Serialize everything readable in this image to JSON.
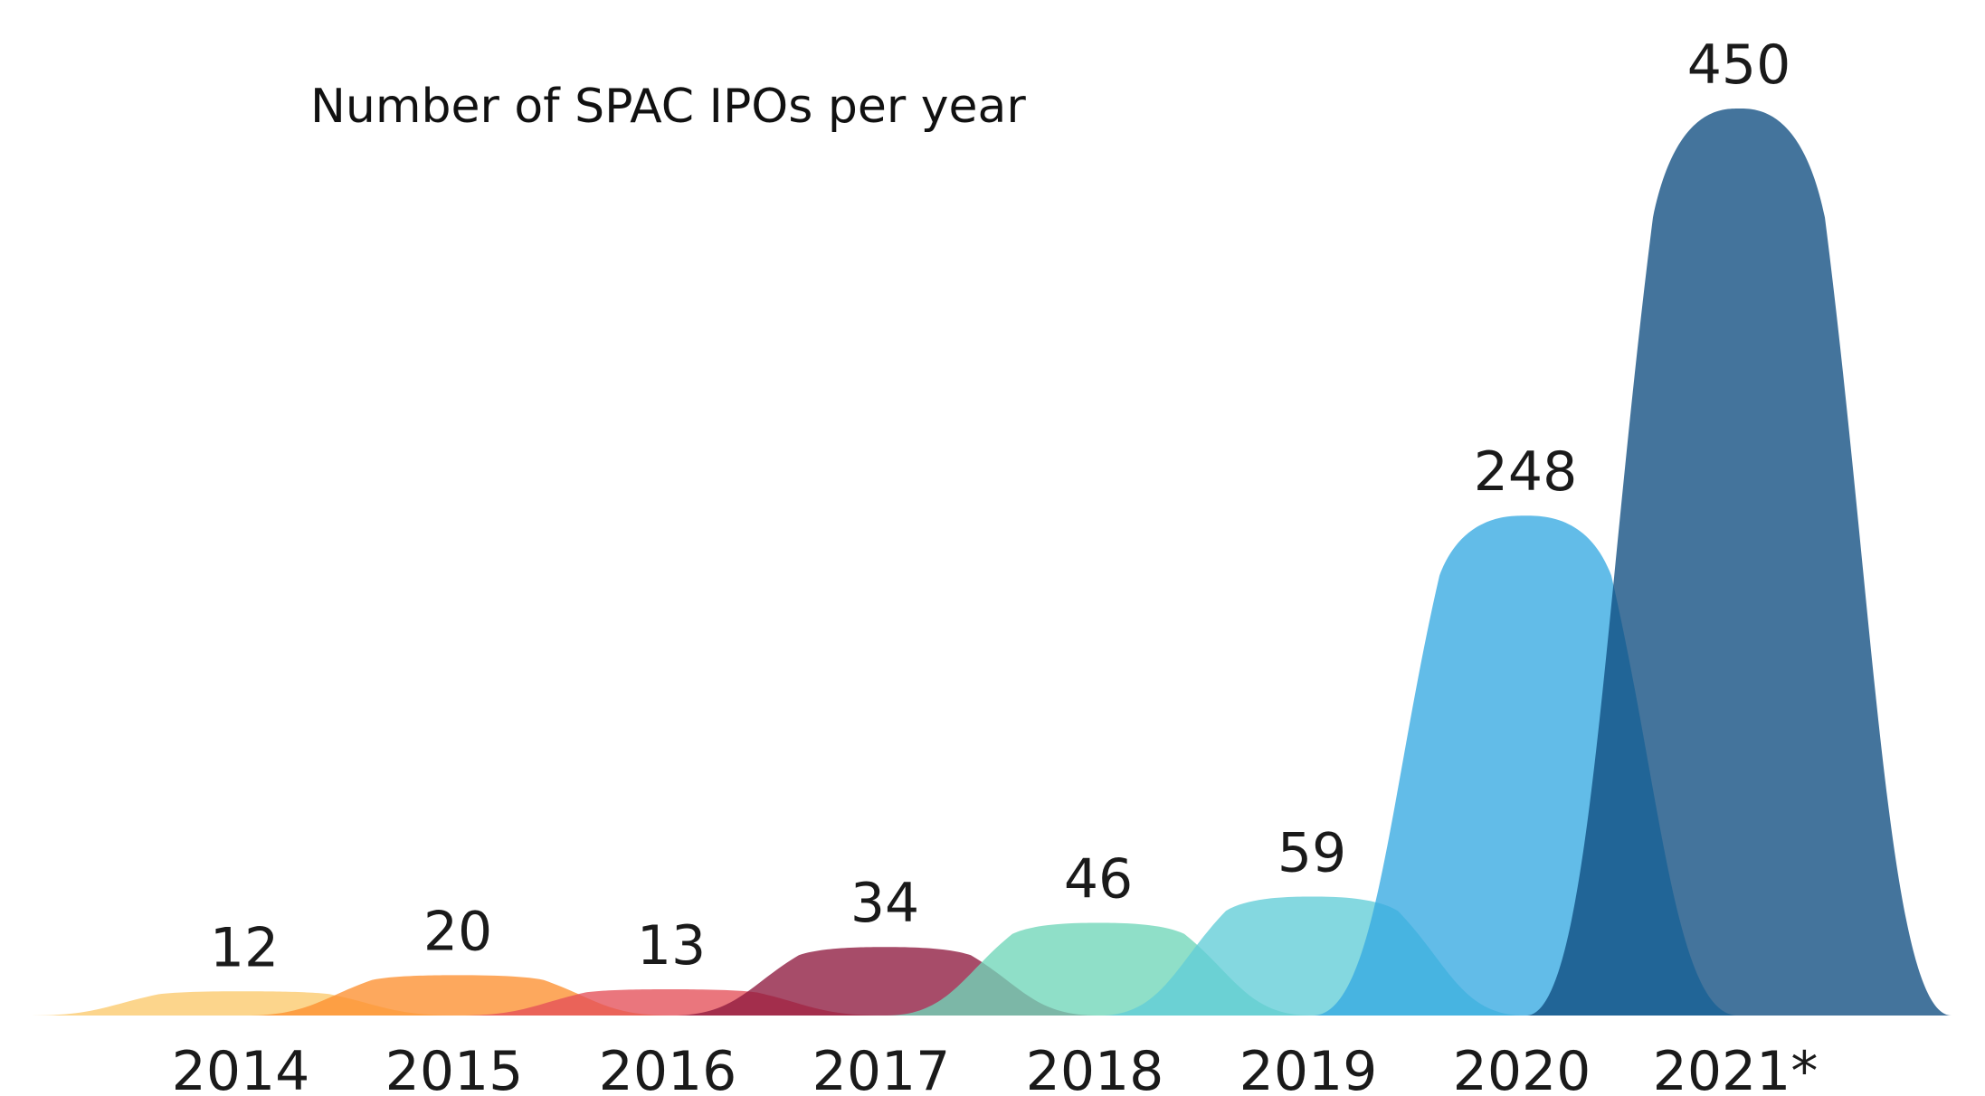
{
  "chart_data": {
    "type": "area",
    "title": "Number of SPAC IPOs per year",
    "categories": [
      "2014",
      "2015",
      "2016",
      "2017",
      "2018",
      "2019",
      "2020",
      "2021*"
    ],
    "values": [
      12,
      20,
      13,
      34,
      46,
      59,
      248,
      450
    ],
    "value_labels": [
      "12",
      "20",
      "13",
      "34",
      "46",
      "59",
      "248",
      "450"
    ],
    "colors": [
      "#fbc96b",
      "#fd9030",
      "#e44f58",
      "#8e1a3f",
      "#6fd6b9",
      "#61cdd7",
      "#36a9e1",
      "#0f4d80"
    ],
    "ylim": [
      0,
      450
    ],
    "xlabel": "",
    "ylabel": "",
    "grid": false,
    "legend": "none"
  }
}
